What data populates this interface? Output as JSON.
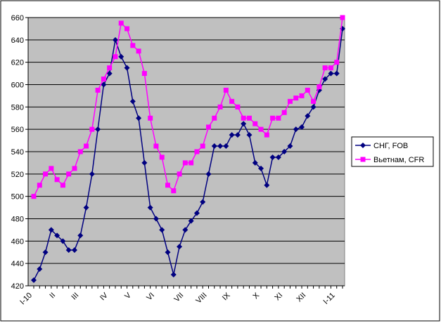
{
  "chart_data": {
    "type": "line",
    "categories": [
      "I-10",
      null,
      null,
      null,
      "II",
      null,
      null,
      null,
      "III",
      null,
      null,
      null,
      null,
      "IV",
      null,
      null,
      null,
      "V",
      null,
      null,
      null,
      "VI",
      null,
      null,
      null,
      null,
      "VII",
      null,
      null,
      null,
      "VIII",
      null,
      null,
      null,
      "IX",
      null,
      null,
      null,
      null,
      "X",
      null,
      null,
      null,
      "XI",
      null,
      null,
      null,
      "XII",
      null,
      null,
      null,
      null,
      "I-11",
      null
    ],
    "series": [
      {
        "name": "СНГ, FOB",
        "color": "#000080",
        "marker": "diamond",
        "values": [
          425,
          435,
          450,
          470,
          465,
          460,
          452,
          452,
          465,
          490,
          520,
          560,
          600,
          610,
          640,
          625,
          615,
          585,
          570,
          530,
          490,
          480,
          470,
          450,
          430,
          455,
          470,
          478,
          485,
          495,
          520,
          545,
          545,
          545,
          555,
          555,
          565,
          555,
          530,
          525,
          510,
          535,
          535,
          540,
          545,
          560,
          562,
          572,
          580,
          595,
          605,
          610,
          610,
          650
        ]
      },
      {
        "name": "Вьетнам, CFR",
        "color": "#ff00ff",
        "marker": "square",
        "values": [
          500,
          510,
          520,
          525,
          515,
          510,
          520,
          525,
          540,
          545,
          560,
          595,
          605,
          615,
          625,
          655,
          650,
          635,
          630,
          610,
          570,
          545,
          535,
          510,
          505,
          520,
          530,
          530,
          540,
          545,
          562,
          570,
          580,
          595,
          585,
          580,
          570,
          570,
          565,
          560,
          555,
          570,
          570,
          575,
          585,
          588,
          590,
          595,
          585,
          598,
          615,
          615,
          620,
          660
        ]
      }
    ],
    "ylim": [
      420,
      660
    ],
    "yticks": [
      420,
      440,
      460,
      480,
      500,
      520,
      540,
      560,
      580,
      600,
      620,
      640,
      660
    ],
    "grid": true,
    "legend": "right"
  }
}
